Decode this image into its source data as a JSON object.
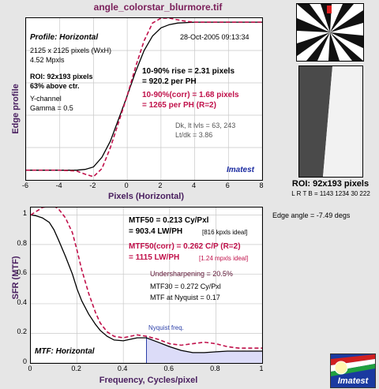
{
  "header": {
    "title": "angle_colorstar_blurmore.tif"
  },
  "edge_plot": {
    "profile_label": "Profile: Horizontal",
    "date": "28-Oct-2005 09:13:34",
    "image_size": "2125 x 2125 pixels (WxH)",
    "mpxls": "4.52 Mpxls",
    "roi": "ROI: 92x193 pixels",
    "above_ctr": "63% above ctr.",
    "channel": "Y-channel",
    "gamma": "Gamma = 0.5",
    "rise_line1": "10-90% rise = 2.31 pixels",
    "rise_line2": "= 920.2 per PH",
    "corr_line1": "10-90%(corr) = 1.68 pixels",
    "corr_line2": "= 1265 per PH  (R=2)",
    "dk_lt": "Dk, lt lvls = 63, 243",
    "ltdk": "Lt/dk = 3.86",
    "brand": "Imatest",
    "ylabel": "Edge profile",
    "xlabel": "Pixels (Horizontal)"
  },
  "mtf_plot": {
    "mtf_label": "MTF: Horizontal",
    "mtf50_line1": "MTF50 = 0.213 Cy/Pxl",
    "mtf50_line2": "= 903.4 LW/PH",
    "mtf50_ideal": "[816 kpxls ideal]",
    "corr_line1": "MTF50(corr) = 0.262 C/P  (R=2)",
    "corr_line2": "= 1115 LW/PH",
    "corr_ideal": "[1.24 mpxls ideal]",
    "undersharpening": "Undersharpening = 20.5%",
    "mtf30": "MTF30 = 0.272 Cy/Pxl",
    "mtf_nyquist": "MTF at Nyquist = 0.17",
    "nyquist_label": "Nyquist freq.",
    "ylabel": "SFR (MTF)",
    "xlabel": "Frequency, Cycles/pixel"
  },
  "side": {
    "roi_label": "ROI: 92x193 pixels",
    "lrtb": "L R  T B = 1143 1234  30 222",
    "edge_angle": "Edge angle = -7.49 degs",
    "logo_text": "Imatest"
  },
  "colors": {
    "accent": "#c0104a",
    "title": "#7a1f5a",
    "axis_label": "#4a2060",
    "nyquist_fill": "#dcdcf8"
  },
  "chart_data": [
    {
      "type": "line",
      "title": "Profile: Horizontal",
      "xlabel": "Pixels (Horizontal)",
      "ylabel": "Edge profile",
      "xlim": [
        -6,
        8
      ],
      "ylim": [
        0,
        1
      ],
      "x_ticks": [
        -6,
        -4,
        -2,
        0,
        2,
        4,
        6,
        8
      ],
      "grid": true,
      "series": [
        {
          "x": [
            -6,
            -4,
            -3,
            -2.5,
            -2,
            -1.5,
            -1,
            -0.5,
            0,
            0.5,
            1,
            1.5,
            2,
            2.5,
            3,
            4,
            5,
            6,
            7,
            8
          ],
          "values": [
            0.06,
            0.06,
            0.06,
            0.065,
            0.08,
            0.14,
            0.24,
            0.38,
            0.52,
            0.67,
            0.8,
            0.89,
            0.94,
            0.96,
            0.97,
            0.975,
            0.975,
            0.975,
            0.975,
            0.975
          ]
        },
        {
          "x": [
            -6,
            -4,
            -3,
            -2.5,
            -2,
            -1.5,
            -1,
            -0.5,
            0,
            0.5,
            1,
            1.5,
            2,
            2.5,
            3,
            3.5,
            4,
            5,
            6,
            7,
            8
          ],
          "values": [
            0.06,
            0.06,
            0.055,
            0.035,
            0.02,
            0.07,
            0.2,
            0.36,
            0.52,
            0.7,
            0.86,
            0.97,
            1.0,
            1.0,
            0.99,
            0.98,
            0.975,
            0.975,
            0.975,
            0.975,
            0.975
          ]
        }
      ]
    },
    {
      "type": "line",
      "title": "MTF: Horizontal",
      "xlabel": "Frequency, Cycles/pixel",
      "ylabel": "SFR (MTF)",
      "xlim": [
        0,
        1
      ],
      "ylim": [
        0,
        1.05
      ],
      "x_ticks": [
        0,
        0.2,
        0.4,
        0.6,
        0.8,
        1
      ],
      "y_ticks": [
        0,
        0.2,
        0.4,
        0.6,
        0.8,
        1
      ],
      "grid": true,
      "nyquist": 0.5,
      "series": [
        {
          "x": [
            0,
            0.02,
            0.05,
            0.08,
            0.1,
            0.12,
            0.15,
            0.18,
            0.2,
            0.22,
            0.25,
            0.28,
            0.3,
            0.33,
            0.36,
            0.4,
            0.43,
            0.46,
            0.5,
            0.55,
            0.6,
            0.65,
            0.7,
            0.75,
            0.8,
            0.85,
            0.9,
            0.95,
            1.0
          ],
          "values": [
            1.0,
            0.995,
            0.98,
            0.95,
            0.9,
            0.83,
            0.72,
            0.6,
            0.5,
            0.42,
            0.33,
            0.26,
            0.22,
            0.18,
            0.155,
            0.15,
            0.16,
            0.17,
            0.17,
            0.14,
            0.11,
            0.085,
            0.07,
            0.07,
            0.075,
            0.08,
            0.08,
            0.08,
            0.08
          ]
        },
        {
          "x": [
            0,
            0.02,
            0.05,
            0.08,
            0.1,
            0.12,
            0.15,
            0.18,
            0.2,
            0.22,
            0.25,
            0.28,
            0.3,
            0.33,
            0.36,
            0.4,
            0.43,
            0.46,
            0.5,
            0.55,
            0.6,
            0.65,
            0.7,
            0.75,
            0.8,
            0.85,
            0.9,
            0.95,
            1.0
          ],
          "values": [
            1.0,
            1.02,
            1.05,
            1.06,
            1.06,
            1.04,
            0.98,
            0.88,
            0.76,
            0.63,
            0.47,
            0.34,
            0.27,
            0.21,
            0.18,
            0.17,
            0.18,
            0.19,
            0.18,
            0.16,
            0.13,
            0.12,
            0.13,
            0.14,
            0.13,
            0.11,
            0.1,
            0.1,
            0.1
          ]
        }
      ]
    }
  ]
}
